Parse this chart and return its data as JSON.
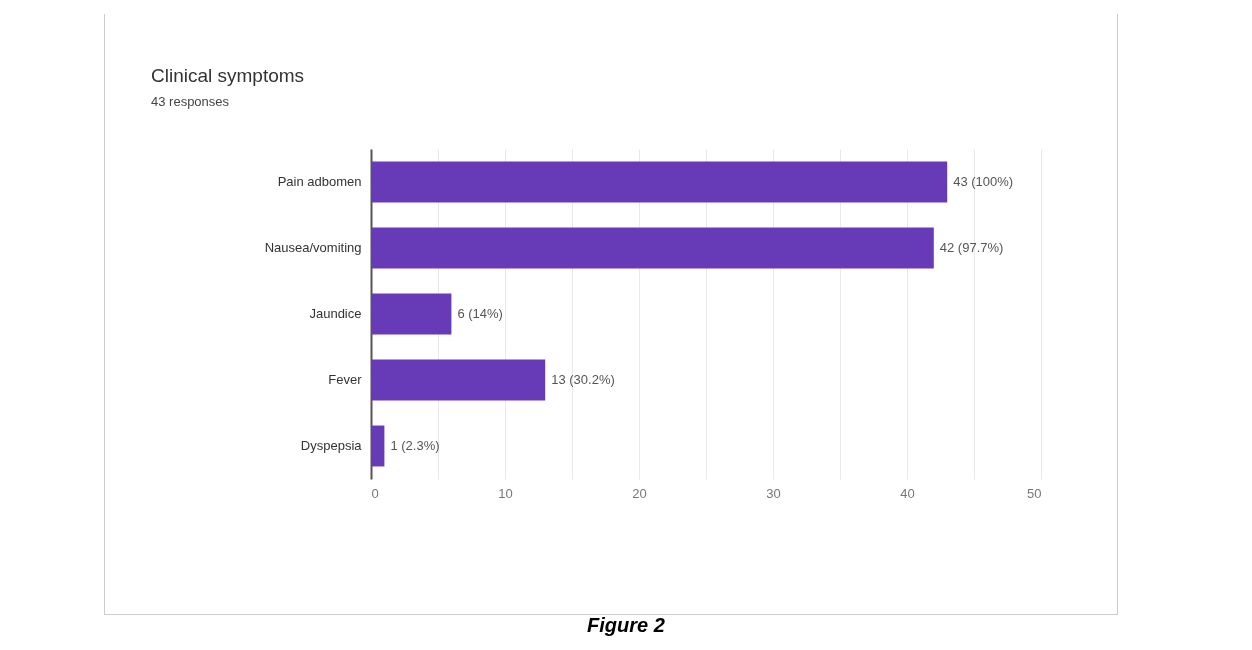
{
  "chart_data": {
    "type": "bar",
    "orientation": "horizontal",
    "title": "Clinical symptoms",
    "subtitle": "43 responses",
    "categories": [
      "Pain adbomen",
      "Nausea/vomiting",
      "Jaundice",
      "Fever",
      "Dyspepsia"
    ],
    "values": [
      43,
      42,
      6,
      13,
      1
    ],
    "value_labels": [
      "43 (100%)",
      "42 (97.7%)",
      "6 (14%)",
      "13 (30.2%)",
      "1 (2.3%)"
    ],
    "color": "#673ab7",
    "xlim": [
      0,
      50
    ],
    "xticks": [
      0,
      {
        "value": 5,
        "label": null
      },
      10,
      {
        "value": 15,
        "label": null
      },
      20,
      {
        "value": 25,
        "label": null
      },
      30,
      {
        "value": 35,
        "label": null
      },
      40,
      {
        "value": 45,
        "label": null
      },
      50
    ],
    "grid": "x",
    "annotations": [
      "Figure 2"
    ]
  }
}
